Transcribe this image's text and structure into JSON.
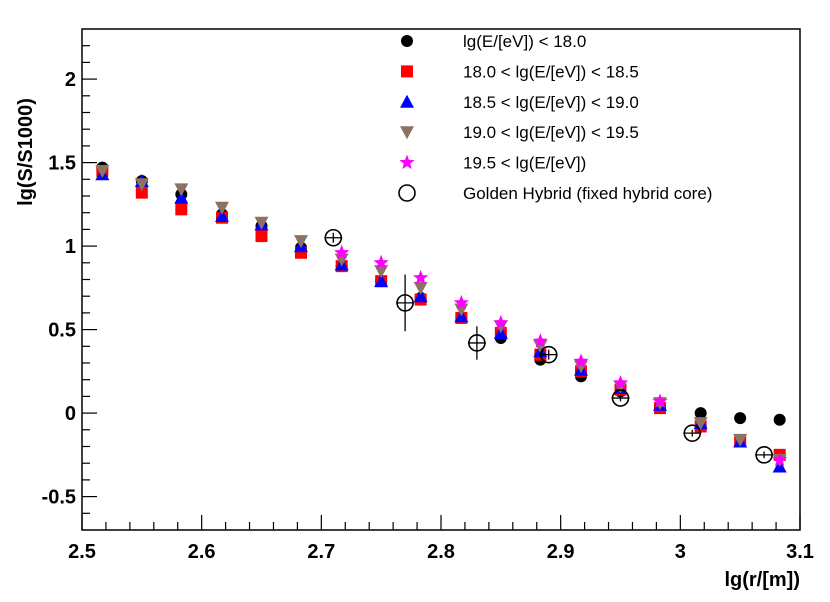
{
  "chart_data": {
    "type": "scatter",
    "title": "",
    "xlabel": "lg(r/[m])",
    "ylabel": "lg(S/S1000)",
    "xlim": [
      2.5,
      3.1
    ],
    "ylim": [
      -0.7,
      2.3
    ],
    "x_ticks": [
      "2.5",
      "2.6",
      "2.7",
      "2.8",
      "2.9",
      "3",
      "3.1"
    ],
    "y_ticks": [
      "-0.5",
      "0",
      "0.5",
      "1",
      "1.5",
      "2"
    ],
    "x_tick_values": [
      2.5,
      2.6,
      2.7,
      2.8,
      2.9,
      3.0,
      3.1
    ],
    "y_tick_values": [
      -0.5,
      0,
      0.5,
      1,
      1.5,
      2
    ],
    "grid": false,
    "legend_position": "top-right",
    "series": [
      {
        "name": "lg(E/[eV]) < 18.0",
        "marker": "circle",
        "color": "#000000",
        "x": [
          2.517,
          2.55,
          2.583,
          2.617,
          2.65,
          2.683,
          2.717,
          2.75,
          2.783,
          2.817,
          2.85,
          2.883,
          2.917,
          2.95,
          2.983,
          3.017,
          3.05,
          3.083
        ],
        "y": [
          1.47,
          1.39,
          1.31,
          1.19,
          1.12,
          0.99,
          0.88,
          0.79,
          0.69,
          0.57,
          0.45,
          0.32,
          0.22,
          0.13,
          0.04,
          0.0,
          -0.03,
          -0.04
        ]
      },
      {
        "name": "18.0 < lg(E/[eV]) < 18.5",
        "marker": "square",
        "color": "#ff0000",
        "x": [
          2.517,
          2.55,
          2.583,
          2.617,
          2.65,
          2.683,
          2.717,
          2.75,
          2.783,
          2.817,
          2.85,
          2.883,
          2.917,
          2.95,
          2.983,
          3.017,
          3.05,
          3.083
        ],
        "y": [
          1.45,
          1.32,
          1.22,
          1.17,
          1.06,
          0.96,
          0.88,
          0.79,
          0.68,
          0.57,
          0.48,
          0.35,
          0.25,
          0.14,
          0.03,
          -0.08,
          -0.17,
          -0.25
        ]
      },
      {
        "name": "18.5 < lg(E/[eV]) < 19.0",
        "marker": "triangle-up",
        "color": "#0000ff",
        "x": [
          2.517,
          2.55,
          2.583,
          2.617,
          2.65,
          2.683,
          2.717,
          2.75,
          2.783,
          2.817,
          2.85,
          2.883,
          2.917,
          2.95,
          2.983,
          3.017,
          3.05,
          3.083
        ],
        "y": [
          1.43,
          1.39,
          1.29,
          1.18,
          1.13,
          1.0,
          0.89,
          0.79,
          0.7,
          0.58,
          0.48,
          0.37,
          0.26,
          0.15,
          0.05,
          -0.06,
          -0.17,
          -0.32
        ]
      },
      {
        "name": "19.0 < lg(E/[eV]) < 19.5",
        "marker": "triangle-down",
        "color": "#8b7262",
        "x": [
          2.517,
          2.55,
          2.583,
          2.617,
          2.65,
          2.683,
          2.717,
          2.75,
          2.783,
          2.817,
          2.85,
          2.883,
          2.917,
          2.95,
          2.983,
          3.017,
          3.05,
          3.083
        ],
        "y": [
          1.45,
          1.37,
          1.34,
          1.23,
          1.14,
          1.03,
          0.92,
          0.85,
          0.75,
          0.62,
          0.52,
          0.4,
          0.28,
          0.16,
          0.06,
          -0.06,
          -0.16,
          -0.28
        ]
      },
      {
        "name": "19.5 < lg(E/[eV])",
        "marker": "star",
        "color": "#ff00ff",
        "x": [
          2.717,
          2.75,
          2.783,
          2.817,
          2.85,
          2.883,
          2.917,
          2.95,
          2.983,
          3.083
        ],
        "y": [
          0.96,
          0.9,
          0.81,
          0.66,
          0.54,
          0.43,
          0.31,
          0.18,
          0.07,
          -0.28
        ]
      },
      {
        "name": "Golden Hybrid (fixed hybrid core)",
        "marker": "open-circle",
        "color": "#000000",
        "x": [
          2.71,
          2.77,
          2.83,
          2.89,
          2.95,
          3.01,
          3.07
        ],
        "y": [
          1.05,
          0.66,
          0.42,
          0.35,
          0.09,
          -0.12,
          -0.25
        ],
        "y_err": [
          0.03,
          0.17,
          0.1,
          0.03,
          0.02,
          0.02,
          0.02
        ]
      }
    ]
  }
}
